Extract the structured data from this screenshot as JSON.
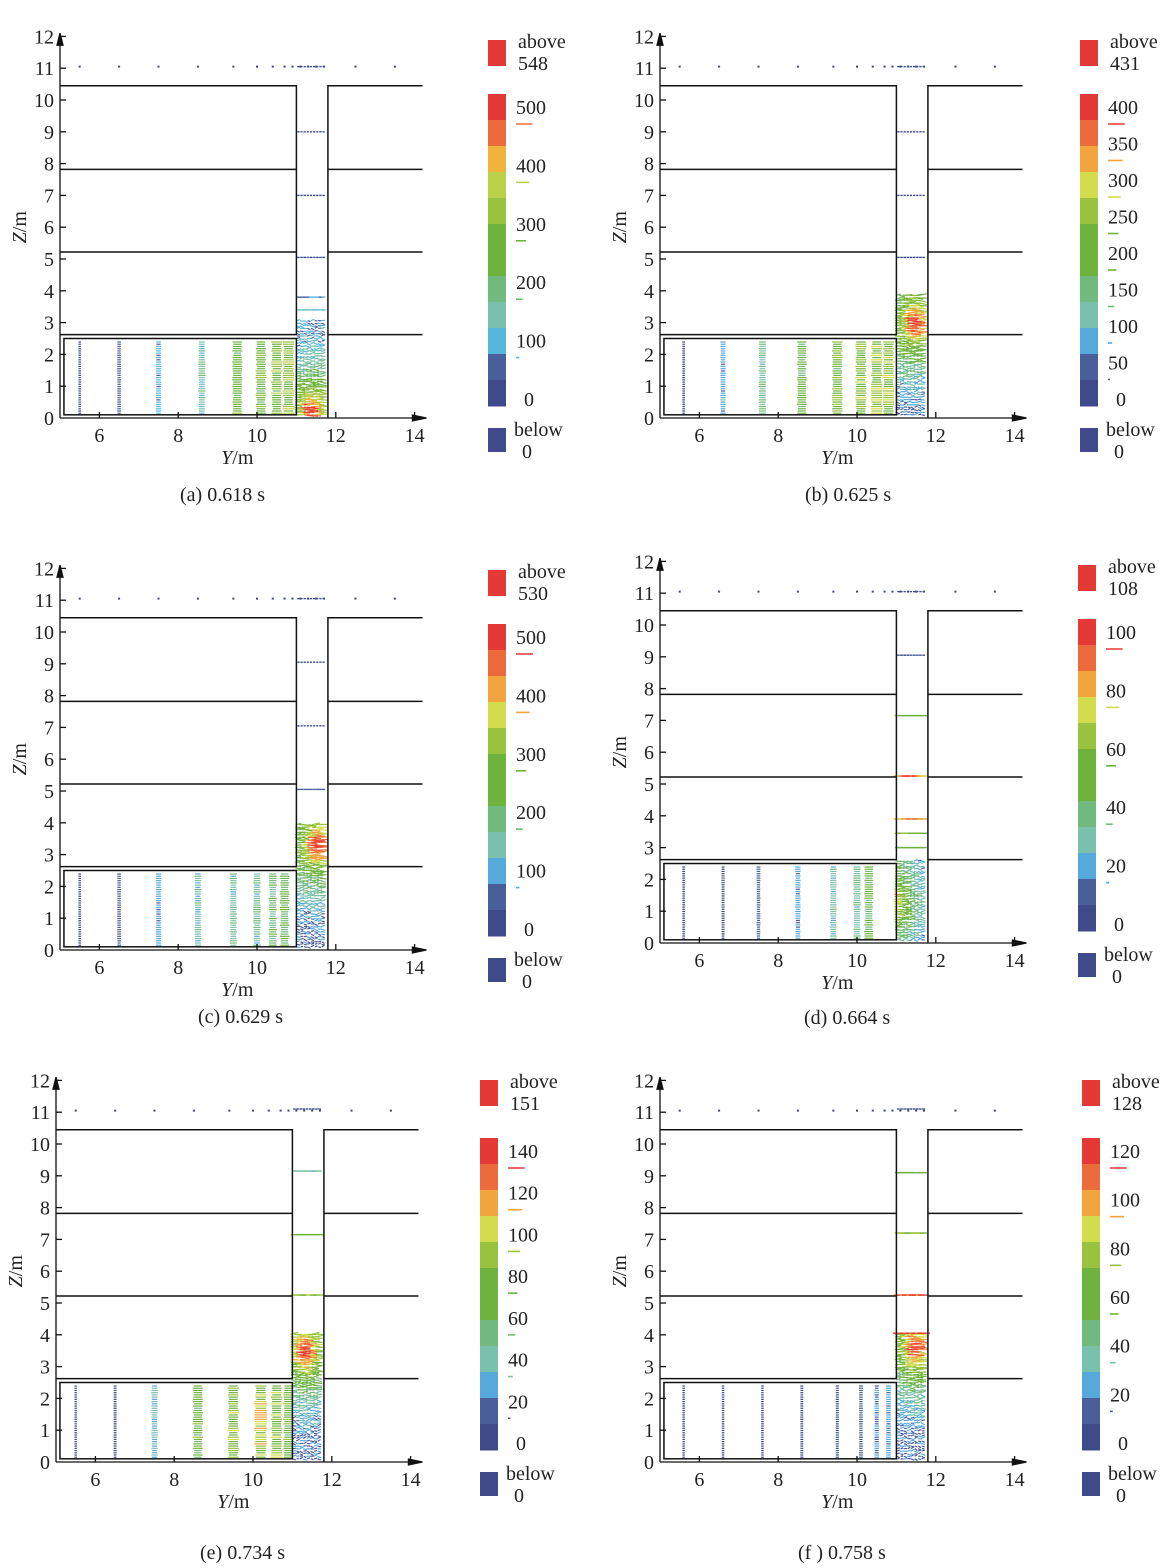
{
  "chart_data": [
    {
      "id": "a",
      "type": "vector-field",
      "caption": "(a) 0.618 s",
      "xlabel": "Y/m",
      "ylabel": "Z/m",
      "xlim": [
        5,
        14.2
      ],
      "ylim": [
        0,
        12
      ],
      "xticks": [
        6,
        8,
        10,
        12,
        14
      ],
      "yticks": [
        0,
        1,
        2,
        3,
        4,
        5,
        6,
        7,
        8,
        9,
        10,
        11,
        12
      ],
      "legend": {
        "above": {
          "label": "above",
          "value": "548",
          "color": "#e53935"
        },
        "below": {
          "label": "below",
          "value": "0",
          "color": "#3f4a8a"
        },
        "tick_labels": [
          "500",
          "400",
          "300",
          "200",
          "100",
          "0"
        ],
        "band_colors": [
          "#e53935",
          "#ec6b3c",
          "#f2b33d",
          "#bcd14a",
          "#99c23e",
          "#6fb33f",
          "#6fb33f",
          "#72b97d",
          "#79c0ad",
          "#55b7db",
          "#4a5e9b",
          "#3f4a8a"
        ]
      },
      "field": {
        "room_columns": [
          5.5,
          6.5,
          7.5,
          8.6,
          9.5,
          10.1,
          10.5,
          10.8
        ],
        "room_column_values": [
          20,
          60,
          110,
          170,
          260,
          280,
          300,
          320
        ],
        "shaft_rows": [
          {
            "z": 11.05,
            "value": 10
          },
          {
            "z": 9.0,
            "value": 10
          },
          {
            "z": 7.0,
            "value": 20
          },
          {
            "z": 5.05,
            "value": 40
          },
          {
            "z": 3.8,
            "value": 90
          },
          {
            "z": 3.4,
            "value": 140
          }
        ],
        "hotspot": {
          "y": 11.4,
          "z": 0.2,
          "value": 548
        },
        "plume_top_z": 3.1
      }
    },
    {
      "id": "b",
      "type": "vector-field",
      "caption": "(b) 0.625 s",
      "xlabel": "Y/m",
      "ylabel": "Z/m",
      "xlim": [
        5,
        14.2
      ],
      "ylim": [
        0,
        12
      ],
      "xticks": [
        6,
        8,
        10,
        12,
        14
      ],
      "yticks": [
        0,
        1,
        2,
        3,
        4,
        5,
        6,
        7,
        8,
        9,
        10,
        11,
        12
      ],
      "legend": {
        "above": {
          "label": "above",
          "value": "431",
          "color": "#e53935"
        },
        "below": {
          "label": "below",
          "value": "0",
          "color": "#3f4a8a"
        },
        "tick_labels": [
          "400",
          "350",
          "300",
          "250",
          "200",
          "150",
          "100",
          "50",
          "0"
        ],
        "band_colors": [
          "#e53935",
          "#ec6b3c",
          "#f2a43d",
          "#d3dc4c",
          "#99c23e",
          "#6fb33f",
          "#6fb33f",
          "#72b97d",
          "#79c0ad",
          "#55a9db",
          "#4a5e9b",
          "#3f4a8a"
        ]
      },
      "field": {
        "room_columns": [
          5.6,
          6.6,
          7.6,
          8.6,
          9.5,
          10.1,
          10.5,
          10.8
        ],
        "room_column_values": [
          20,
          90,
          140,
          200,
          230,
          240,
          250,
          260
        ],
        "shaft_rows": [
          {
            "z": 11.05,
            "value": 10
          },
          {
            "z": 9.0,
            "value": 10
          },
          {
            "z": 7.0,
            "value": 10
          },
          {
            "z": 5.05,
            "value": 30
          }
        ],
        "hotspot": {
          "y": 11.5,
          "z": 3.0,
          "value": 431
        },
        "plume_top_z": 3.9
      }
    },
    {
      "id": "c",
      "type": "vector-field",
      "caption": "(c) 0.629 s",
      "xlabel": "Y/m",
      "ylabel": "Z/m",
      "xlim": [
        5,
        14.2
      ],
      "ylim": [
        0,
        12
      ],
      "xticks": [
        6,
        8,
        10,
        12,
        14
      ],
      "yticks": [
        0,
        1,
        2,
        3,
        4,
        5,
        6,
        7,
        8,
        9,
        10,
        11,
        12
      ],
      "legend": {
        "above": {
          "label": "above",
          "value": "530",
          "color": "#e53935"
        },
        "below": {
          "label": "below",
          "value": "0",
          "color": "#3f4a8a"
        },
        "tick_labels": [
          "500",
          "400",
          "300",
          "200",
          "100",
          "0"
        ],
        "band_colors": [
          "#e53935",
          "#ec6b3c",
          "#f2a43d",
          "#d3dc4c",
          "#99c23e",
          "#6fb33f",
          "#6fb33f",
          "#72b97d",
          "#79c0ad",
          "#55a9db",
          "#4a5e9b",
          "#3f4a8a"
        ]
      },
      "field": {
        "room_columns": [
          5.5,
          6.5,
          7.5,
          8.5,
          9.4,
          10.0,
          10.4,
          10.7
        ],
        "room_column_values": [
          20,
          60,
          110,
          150,
          160,
          170,
          190,
          230
        ],
        "shaft_rows": [
          {
            "z": 11.05,
            "value": 10
          },
          {
            "z": 9.05,
            "value": 10
          },
          {
            "z": 7.05,
            "value": 10
          },
          {
            "z": 5.05,
            "value": 60
          }
        ],
        "hotspot": {
          "y": 11.55,
          "z": 3.3,
          "value": 530
        },
        "plume_top_z": 4.0
      }
    },
    {
      "id": "d",
      "type": "vector-field",
      "caption": "(d) 0.664 s",
      "xlabel": "Y/m",
      "ylabel": "Z/m",
      "xlim": [
        5,
        14.2
      ],
      "ylim": [
        0,
        12
      ],
      "xticks": [
        6,
        8,
        10,
        12,
        14
      ],
      "yticks": [
        0,
        1,
        2,
        3,
        4,
        5,
        6,
        7,
        8,
        9,
        10,
        11,
        12
      ],
      "legend": {
        "above": {
          "label": "above",
          "value": "108",
          "color": "#e53935"
        },
        "below": {
          "label": "below",
          "value": "0",
          "color": "#3f4a8a"
        },
        "tick_labels": [
          "100",
          "80",
          "60",
          "40",
          "20",
          "0"
        ],
        "band_colors": [
          "#e53935",
          "#ec6b3c",
          "#f2a43d",
          "#d3dc4c",
          "#99c23e",
          "#6fb33f",
          "#6fb33f",
          "#72b97d",
          "#79c0ad",
          "#55a9db",
          "#4a5e9b",
          "#3f4a8a"
        ]
      },
      "field": {
        "room_columns": [
          5.6,
          6.6,
          7.5,
          8.5,
          9.4,
          10.0,
          10.3
        ],
        "room_column_values": [
          5,
          8,
          12,
          22,
          30,
          35,
          45
        ],
        "shaft_rows": [
          {
            "z": 11.05,
            "value": 2
          },
          {
            "z": 9.05,
            "value": 10
          },
          {
            "z": 7.15,
            "value": 55
          },
          {
            "z": 5.25,
            "value": 95
          },
          {
            "z": 3.9,
            "value": 80
          },
          {
            "z": 3.45,
            "value": 60
          },
          {
            "z": 3.0,
            "value": 55
          }
        ],
        "hotspot": {
          "y": 10.8,
          "z": 1.3,
          "value": 108
        },
        "plume_top_z": 2.6
      }
    },
    {
      "id": "e",
      "type": "vector-field",
      "caption": "(e) 0.734 s",
      "xlabel": "Y/m",
      "ylabel": "Z/m",
      "xlim": [
        5,
        14.2
      ],
      "ylim": [
        0,
        12
      ],
      "xticks": [
        6,
        8,
        10,
        12,
        14
      ],
      "yticks": [
        0,
        1,
        2,
        3,
        4,
        5,
        6,
        7,
        8,
        9,
        10,
        11,
        12
      ],
      "legend": {
        "above": {
          "label": "above",
          "value": "151",
          "color": "#e53935"
        },
        "below": {
          "label": "below",
          "value": "0",
          "color": "#3f4a8a"
        },
        "tick_labels": [
          "140",
          "120",
          "100",
          "80",
          "60",
          "40",
          "20",
          "0"
        ],
        "band_colors": [
          "#e53935",
          "#ec6b3c",
          "#f2a43d",
          "#d3dc4c",
          "#99c23e",
          "#6fb33f",
          "#6fb33f",
          "#72b97d",
          "#79c0ad",
          "#55a9db",
          "#4a5e9b",
          "#3f4a8a"
        ]
      },
      "field": {
        "room_columns": [
          5.5,
          6.5,
          7.5,
          8.6,
          9.5,
          10.2,
          10.6,
          10.9
        ],
        "room_column_values": [
          5,
          10,
          40,
          75,
          85,
          95,
          90,
          80
        ],
        "shaft_rows": [
          {
            "z": 11.1,
            "value": 10
          },
          {
            "z": 9.15,
            "value": 45
          },
          {
            "z": 7.15,
            "value": 75
          },
          {
            "z": 5.25,
            "value": 100
          }
        ],
        "hotspot": {
          "y": 11.35,
          "z": 3.5,
          "value": 151
        },
        "plume_top_z": 4.1
      }
    },
    {
      "id": "f",
      "type": "vector-field",
      "caption": "(f ) 0.758 s",
      "xlabel": "Y/m",
      "ylabel": "Z/m",
      "xlim": [
        5,
        14.2
      ],
      "ylim": [
        0,
        12
      ],
      "xticks": [
        6,
        8,
        10,
        12,
        14
      ],
      "yticks": [
        0,
        1,
        2,
        3,
        4,
        5,
        6,
        7,
        8,
        9,
        10,
        11,
        12
      ],
      "legend": {
        "above": {
          "label": "above",
          "value": "128",
          "color": "#e53935"
        },
        "below": {
          "label": "below",
          "value": "0",
          "color": "#3f4a8a"
        },
        "tick_labels": [
          "120",
          "100",
          "80",
          "60",
          "40",
          "20",
          "0"
        ],
        "band_colors": [
          "#e53935",
          "#ec6b3c",
          "#f2a43d",
          "#d3dc4c",
          "#99c23e",
          "#6fb33f",
          "#6fb33f",
          "#72b97d",
          "#79c0ad",
          "#55a9db",
          "#4a5e9b",
          "#3f4a8a"
        ]
      },
      "field": {
        "room_columns": [
          5.6,
          6.6,
          7.6,
          8.6,
          9.5,
          10.1,
          10.5,
          10.8
        ],
        "room_column_values": [
          5,
          5,
          5,
          8,
          10,
          15,
          20,
          25
        ],
        "shaft_rows": [
          {
            "z": 11.1,
            "value": 10
          },
          {
            "z": 9.1,
            "value": 60
          },
          {
            "z": 7.2,
            "value": 70
          },
          {
            "z": 5.25,
            "value": 115
          },
          {
            "z": 4.05,
            "value": 125
          }
        ],
        "hotspot": {
          "y": 11.5,
          "z": 3.6,
          "value": 128
        },
        "plume_top_z": 4.1
      }
    }
  ],
  "geometry_labels": {
    "note": "Building section: ground room, three floor slabs, vertical shaft"
  }
}
